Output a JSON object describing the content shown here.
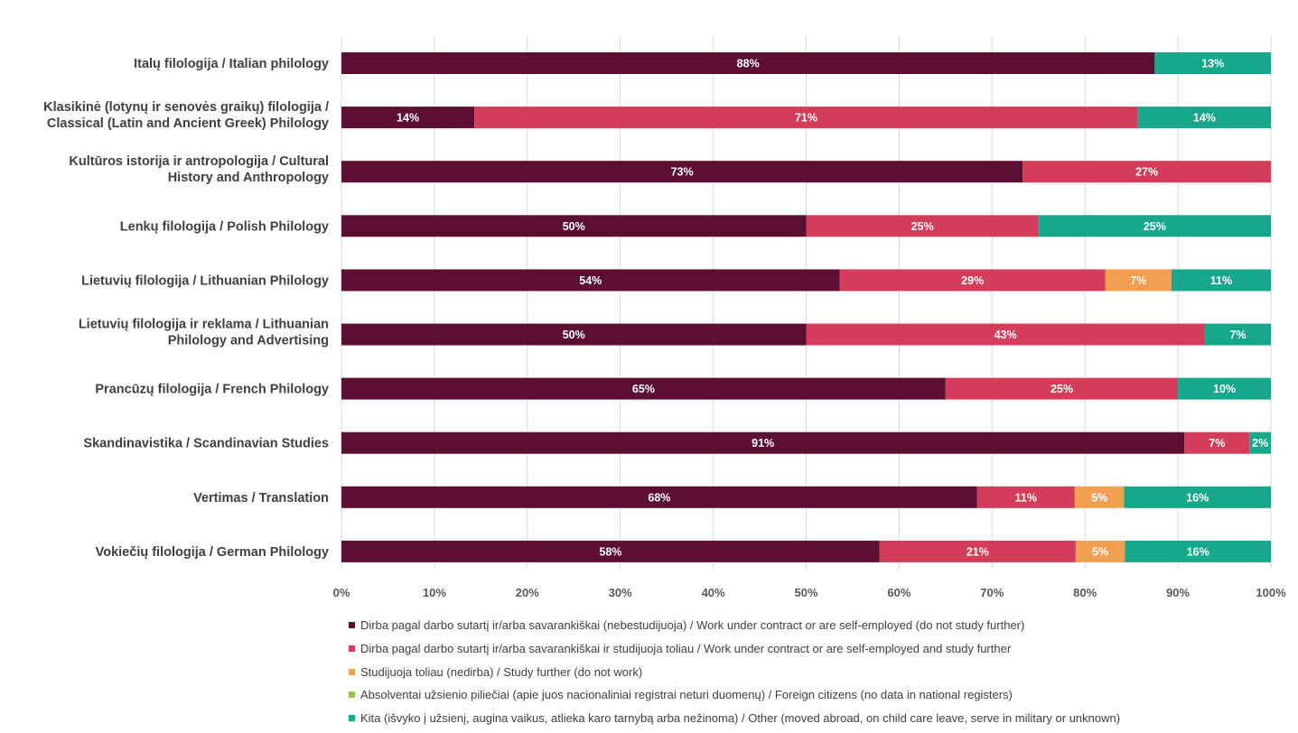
{
  "chart_data": {
    "type": "bar",
    "orientation": "horizontal",
    "stacked": true,
    "categories": [
      [
        "Italų filologija / Italian philology"
      ],
      [
        "Klasikinė (lotynų ir senovės graikų) filologija /",
        "Classical (Latin and Ancient Greek) Philology"
      ],
      [
        "Kultūros istorija ir antropologija / Cultural",
        "History and Anthropology"
      ],
      [
        "Lenkų filologija / Polish Philology"
      ],
      [
        "Lietuvių filologija / Lithuanian Philology"
      ],
      [
        "Lietuvių filologija ir reklama / Lithuanian",
        "Philology and Advertising"
      ],
      [
        "Prancūzų filologija / French Philology"
      ],
      [
        "Skandinavistika / Scandinavian Studies"
      ],
      [
        "Vertimas / Translation"
      ],
      [
        "Vokiečių filologija / German Philology"
      ]
    ],
    "series": [
      {
        "name": "Dirba pagal darbo sutartį ir/arba savarankiškai (nebestudijuoja) / Work under contract or are self-employed (do not study further)",
        "color": "#5c0f33",
        "values": [
          87.5,
          14.3,
          73.3,
          50,
          53.6,
          50,
          65,
          90.7,
          68.4,
          57.9
        ],
        "labels": [
          "88%",
          "14%",
          "73%",
          "50%",
          "54%",
          "50%",
          "65%",
          "91%",
          "68%",
          "58%"
        ]
      },
      {
        "name": "Dirba pagal darbo sutartį ir/arba savarankiškai  ir studijuoja toliau / Work under contract or are self-employed and study further",
        "color": "#d43d5a",
        "values": [
          0,
          71.4,
          26.7,
          25,
          28.6,
          42.9,
          25,
          7,
          10.5,
          21.1
        ],
        "labels": [
          "",
          "71%",
          "27%",
          "25%",
          "29%",
          "43%",
          "25%",
          "7%",
          "11%",
          "21%"
        ]
      },
      {
        "name": "Studijuoja toliau (nedirba) / Study further (do not work)",
        "color": "#f0a050",
        "values": [
          0,
          0,
          0,
          0,
          7.1,
          0,
          0,
          0,
          5.3,
          5.3
        ],
        "labels": [
          "",
          "",
          "",
          "",
          "7%",
          "",
          "",
          "",
          "5%",
          "5%"
        ]
      },
      {
        "name": "Absolventai užsienio piliečiai (apie juos nacionaliniai registrai neturi duomenų) / Foreign citizens (no data in national registers)",
        "color": "#8cc84b",
        "values": [
          0,
          0,
          0,
          0,
          0,
          0,
          0,
          0,
          0,
          0
        ],
        "labels": [
          "",
          "",
          "",
          "",
          "",
          "",
          "",
          "",
          "",
          ""
        ]
      },
      {
        "name": "Kita (išvyko į užsienį, augina vaikus, atlieka karo tarnybą arba nežinoma) / Other (moved abroad, on child care leave, serve in military or unknown)",
        "color": "#17a88c",
        "values": [
          12.5,
          14.3,
          0,
          25,
          10.7,
          7.1,
          10,
          2.3,
          15.8,
          15.7
        ],
        "labels": [
          "13%",
          "14%",
          "",
          "25%",
          "11%",
          "7%",
          "10%",
          "2%",
          "16%",
          "16%"
        ]
      }
    ],
    "xlim": [
      0,
      100
    ],
    "xticks": [
      "0%",
      "10%",
      "20%",
      "30%",
      "40%",
      "50%",
      "60%",
      "70%",
      "80%",
      "90%",
      "100%"
    ],
    "grid": true,
    "legend_position": "bottom"
  }
}
